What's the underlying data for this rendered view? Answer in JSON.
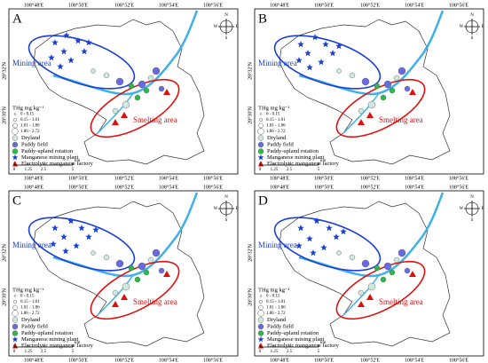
{
  "panels": [
    {
      "label": "A"
    },
    {
      "label": "B"
    },
    {
      "label": "C"
    },
    {
      "label": "D"
    }
  ],
  "lon_ticks": [
    "108°48'E",
    "108°50'E",
    "108°52'E",
    "108°54'E",
    "108°56'E"
  ],
  "lat_ticks": [
    "28°32'N",
    "28°30'N"
  ],
  "areas": {
    "mining": "Mining area",
    "smelting": "Smelting area"
  },
  "legend": {
    "title": "THg mg kg⁻¹",
    "classes": [
      "0 - 0.15",
      "0.15 - 1.01",
      "1.01 - 1.86",
      "1.86 - 2.72"
    ],
    "land_use": [
      "Dryland",
      "Paddy field",
      "Paddy-upland rotation"
    ],
    "facilities": [
      "Manganese mining plant",
      "Electrolytic manganese factory"
    ]
  },
  "scale": {
    "ticks": [
      "0",
      "1.25",
      "2.5",
      "5"
    ],
    "unit": "km"
  },
  "compass": {
    "n": "N",
    "s": "S",
    "w": "W",
    "e": "E"
  }
}
